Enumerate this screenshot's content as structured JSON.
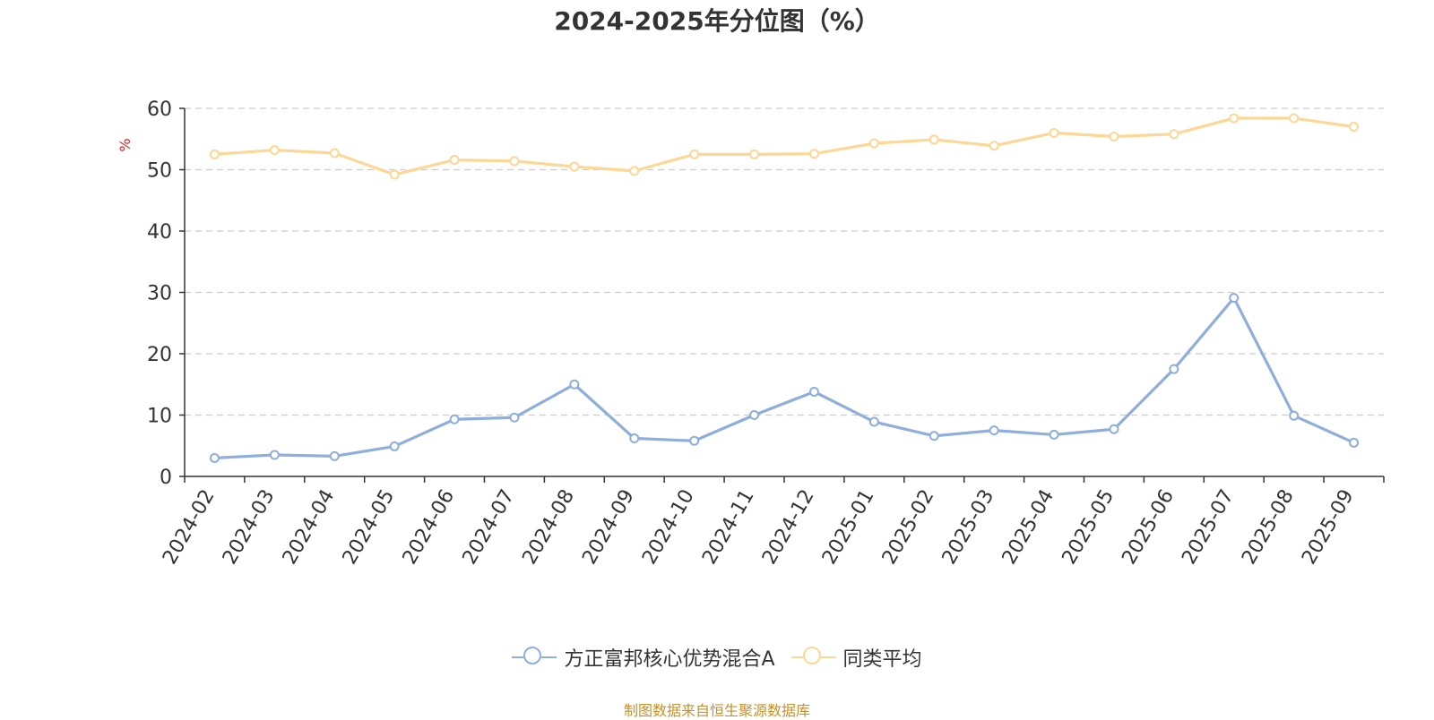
{
  "chart_data": {
    "type": "line",
    "title": "2024-2025年分位图（%）",
    "ylabel": "%",
    "xlabel": "",
    "ylim": [
      0,
      60
    ],
    "yticks": [
      0,
      10,
      20,
      30,
      40,
      50,
      60
    ],
    "grid": true,
    "legend_position": "bottom",
    "categories": [
      "2024-02",
      "2024-03",
      "2024-04",
      "2024-05",
      "2024-06",
      "2024-07",
      "2024-08",
      "2024-09",
      "2024-10",
      "2024-11",
      "2024-12",
      "2025-01",
      "2025-02",
      "2025-03",
      "2025-04",
      "2025-05",
      "2025-06",
      "2025-07",
      "2025-08",
      "2025-09"
    ],
    "series": [
      {
        "name": "方正富邦核心优势混合A",
        "color": "#8eaedb",
        "values": [
          3.0,
          3.5,
          3.3,
          4.9,
          9.3,
          9.6,
          15.0,
          6.2,
          5.8,
          10.0,
          13.8,
          8.9,
          6.6,
          7.5,
          6.8,
          7.7,
          17.5,
          29.1,
          9.9,
          5.5
        ]
      },
      {
        "name": "同类平均",
        "color": "#fdd795",
        "values": [
          52.5,
          53.2,
          52.7,
          49.2,
          51.6,
          51.4,
          50.5,
          49.8,
          52.5,
          52.5,
          52.6,
          54.3,
          54.9,
          53.9,
          56.0,
          55.4,
          55.8,
          58.4,
          58.4,
          57.0
        ]
      }
    ]
  },
  "footer": {
    "source": "制图数据来自恒生聚源数据库",
    "source_color": "#c8902a"
  }
}
